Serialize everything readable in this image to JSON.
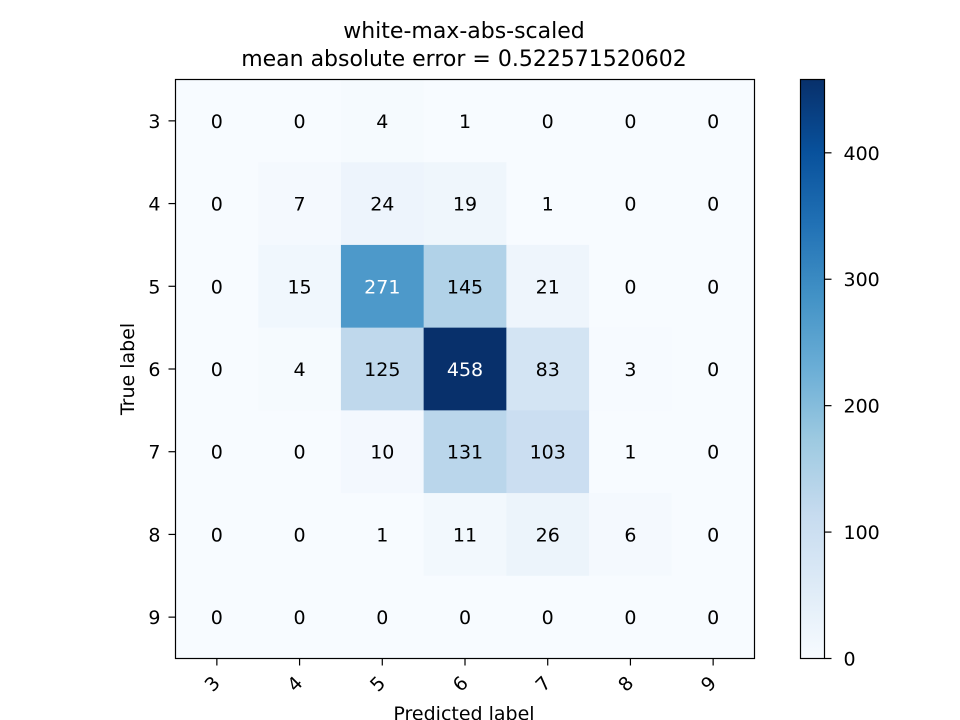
{
  "chart_data": {
    "type": "heatmap",
    "title": "white-max-abs-scaled",
    "subtitle": "mean absolute error = 0.522571520602",
    "xlabel": "Predicted label",
    "ylabel": "True label",
    "x_categories": [
      "3",
      "4",
      "5",
      "6",
      "7",
      "8",
      "9"
    ],
    "y_categories": [
      "3",
      "4",
      "5",
      "6",
      "7",
      "8",
      "9"
    ],
    "matrix": [
      [
        0,
        0,
        4,
        1,
        0,
        0,
        0
      ],
      [
        0,
        7,
        24,
        19,
        1,
        0,
        0
      ],
      [
        0,
        15,
        271,
        145,
        21,
        0,
        0
      ],
      [
        0,
        4,
        125,
        458,
        83,
        3,
        0
      ],
      [
        0,
        0,
        10,
        131,
        103,
        1,
        0
      ],
      [
        0,
        0,
        1,
        11,
        26,
        6,
        0
      ],
      [
        0,
        0,
        0,
        0,
        0,
        0,
        0
      ]
    ],
    "colormap": "Blues",
    "colorbar": {
      "min": 0,
      "max": 458,
      "ticks": [
        0,
        100,
        200,
        300,
        400
      ]
    },
    "x_tick_rotation_deg": 45,
    "grid": false
  }
}
